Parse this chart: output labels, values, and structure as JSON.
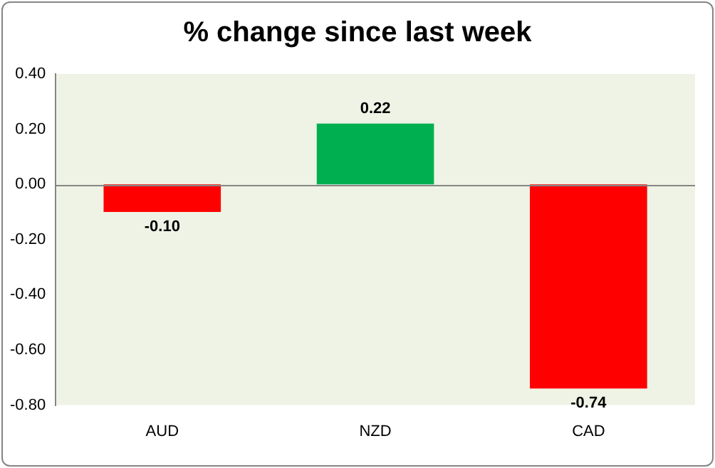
{
  "chart_data": {
    "type": "bar",
    "title": "% change since last week",
    "categories": [
      "AUD",
      "NZD",
      "CAD"
    ],
    "values": [
      -0.1,
      0.22,
      -0.74
    ],
    "colors": [
      "#ff0000",
      "#00b050",
      "#ff0000"
    ],
    "value_labels": [
      "-0.10",
      "0.22",
      "-0.74"
    ],
    "ylim": [
      -0.8,
      0.4
    ],
    "yticks": [
      {
        "value": 0.4,
        "label": "0.40"
      },
      {
        "value": 0.2,
        "label": "0.20"
      },
      {
        "value": 0,
        "label": "0.00"
      },
      {
        "value": -0.2,
        "label": "-0.20"
      },
      {
        "value": -0.4,
        "label": "-0.40"
      },
      {
        "value": -0.6,
        "label": "-0.60"
      },
      {
        "value": -0.8,
        "label": "-0.80"
      }
    ],
    "ref_lines": [
      {
        "axis": "y",
        "value": 0,
        "color": "#868686"
      }
    ],
    "grid": false,
    "legend": false
  }
}
